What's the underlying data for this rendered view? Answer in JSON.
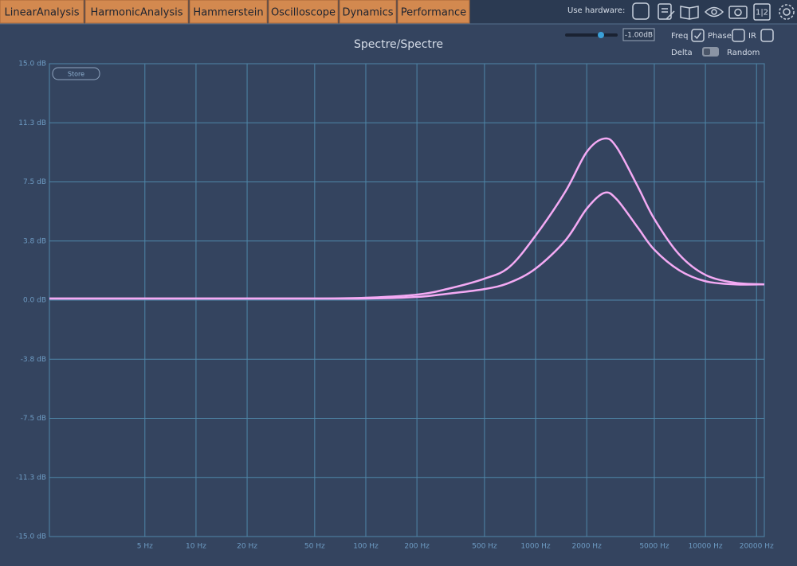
{
  "tabs": [
    "LinearAnalysis",
    "HarmonicAnalysis",
    "Hammerstein",
    "Oscilloscope",
    "Dynamics",
    "Performance"
  ],
  "toolbar": {
    "hardware_label": "Use hardware:",
    "split_icon": "1|2",
    "gain": "-1.00dB",
    "freq": "Freq",
    "freq_checked": true,
    "phase": "Phase",
    "phase_checked": false,
    "ir": "IR",
    "ir_checked": false,
    "delta": "Delta",
    "random": "Random"
  },
  "store": "Store",
  "chart_data": {
    "type": "line",
    "title": "Spectre/Spectre",
    "log_x": true,
    "grid": true,
    "xlim": [
      1.37,
      22230
    ],
    "ylim": [
      -15,
      15
    ],
    "xticks": [
      {
        "value": 5,
        "label": "5 Hz"
      },
      {
        "value": 10,
        "label": "10 Hz"
      },
      {
        "value": 20,
        "label": "20 Hz"
      },
      {
        "value": 50,
        "label": "50 Hz"
      },
      {
        "value": 100,
        "label": "100 Hz"
      },
      {
        "value": 200,
        "label": "200 Hz"
      },
      {
        "value": 500,
        "label": "500 Hz"
      },
      {
        "value": 1000,
        "label": "1000 Hz"
      },
      {
        "value": 2000,
        "label": "2000 Hz"
      },
      {
        "value": 5000,
        "label": "5000 Hz"
      },
      {
        "value": 10000,
        "label": "10000 Hz"
      },
      {
        "value": 20000,
        "label": "20000 Hz"
      }
    ],
    "yticks": [
      {
        "value": 15,
        "label": "15.0 dB"
      },
      {
        "value": 11.25,
        "label": "11.3 dB"
      },
      {
        "value": 7.5,
        "label": "7.5 dB"
      },
      {
        "value": 3.75,
        "label": "3.8 dB"
      },
      {
        "value": 0,
        "label": "0.0 dB"
      },
      {
        "value": -3.75,
        "label": "-3.8 dB"
      },
      {
        "value": -7.5,
        "label": "-7.5 dB"
      },
      {
        "value": -11.25,
        "label": "-11.3 dB"
      },
      {
        "value": -15,
        "label": "-15.0 dB"
      }
    ],
    "x": [
      1.37,
      10,
      50,
      100,
      200,
      300,
      500,
      700,
      1000,
      1500,
      2000,
      2535,
      3000,
      4000,
      5000,
      7000,
      10000,
      15000,
      22230
    ],
    "series": [
      {
        "color": "#f4aaf4",
        "values": [
          0.1,
          0.1,
          0.1,
          0.15,
          0.35,
          0.7,
          1.36,
          2.1,
          4.1,
          6.9,
          9.4,
          10.25,
          9.7,
          7.2,
          5.15,
          2.9,
          1.6,
          1.1,
          1.0
        ]
      },
      {
        "color": "#f4aaf4",
        "values": [
          0.1,
          0.1,
          0.1,
          0.1,
          0.2,
          0.4,
          0.7,
          1.1,
          2.0,
          3.8,
          5.8,
          6.8,
          6.4,
          4.6,
          3.2,
          1.9,
          1.2,
          1.0,
          1.0
        ]
      }
    ]
  }
}
